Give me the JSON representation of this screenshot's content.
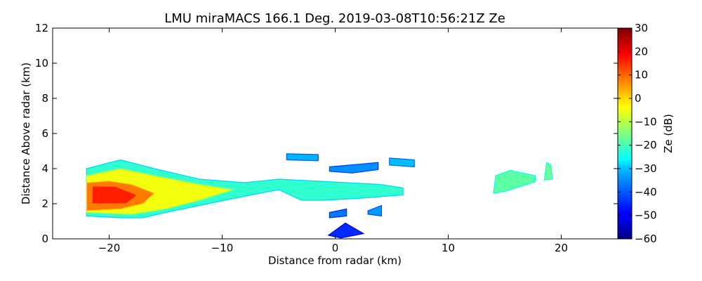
{
  "chart_data": {
    "type": "heatmap",
    "title": "LMU miraMACS 166.1 Deg. 2019-03-08T10:56:21Z  Ze",
    "xlabel": "Distance from radar (km)",
    "ylabel": "Distance Above radar  (km)",
    "xlim": [
      -25,
      25
    ],
    "ylim": [
      0,
      12
    ],
    "xticks": [
      -20,
      -10,
      0,
      10,
      20
    ],
    "xtick_labels": [
      "−20",
      "−10",
      "0",
      "10",
      "20"
    ],
    "yticks": [
      0,
      2,
      4,
      6,
      8,
      10,
      12
    ],
    "ytick_labels": [
      "0",
      "2",
      "4",
      "6",
      "8",
      "10",
      "12"
    ],
    "colorbar": {
      "label": "Ze (dB)",
      "range": [
        -60,
        30
      ],
      "ticks": [
        30,
        20,
        10,
        0,
        -10,
        -20,
        -30,
        -40,
        -50,
        -60
      ],
      "tick_labels": [
        "30",
        "20",
        "10",
        "0",
        "−10",
        "−20",
        "−30",
        "−40",
        "−50",
        "−60"
      ],
      "colormap": "jet"
    },
    "echo_regions": [
      {
        "name": "main-precipitation-band",
        "polygon": [
          [
            -22,
            1.4
          ],
          [
            -22,
            4.0
          ],
          [
            -19,
            4.5
          ],
          [
            -16,
            4.0
          ],
          [
            -12,
            3.4
          ],
          [
            -8,
            3.2
          ],
          [
            -5,
            3.4
          ],
          [
            -2,
            3.3
          ],
          [
            1,
            3.2
          ],
          [
            4,
            3.1
          ],
          [
            6,
            2.9
          ],
          [
            6,
            2.5
          ],
          [
            2,
            2.3
          ],
          [
            -1,
            2.2
          ],
          [
            -3,
            2.2
          ],
          [
            -5,
            2.8
          ],
          [
            -9,
            2.3
          ],
          [
            -12,
            1.9
          ],
          [
            -15,
            1.5
          ],
          [
            -17,
            1.2
          ],
          [
            -19,
            1.2
          ],
          [
            -22,
            1.3
          ]
        ],
        "ze_dB": -22
      },
      {
        "name": "band-inner-core",
        "polygon": [
          [
            -22,
            1.5
          ],
          [
            -22,
            3.6
          ],
          [
            -19,
            4.0
          ],
          [
            -16,
            3.6
          ],
          [
            -12,
            3.1
          ],
          [
            -9,
            2.8
          ],
          [
            -12,
            2.2
          ],
          [
            -15,
            1.7
          ],
          [
            -18,
            1.4
          ]
        ],
        "ze_dB": -5
      },
      {
        "name": "band-max-core",
        "polygon": [
          [
            -22,
            1.6
          ],
          [
            -22,
            3.2
          ],
          [
            -20,
            3.3
          ],
          [
            -18,
            3.1
          ],
          [
            -16,
            2.6
          ],
          [
            -17,
            2.0
          ],
          [
            -19,
            1.7
          ]
        ],
        "ze_dB": 8
      },
      {
        "name": "band-hot-spot",
        "polygon": [
          [
            -21.5,
            2.0
          ],
          [
            -21.5,
            3.0
          ],
          [
            -19.5,
            3.0
          ],
          [
            -17.5,
            2.5
          ],
          [
            -18.5,
            2.0
          ]
        ],
        "ze_dB": 16
      },
      {
        "name": "upper-fragment-a",
        "polygon": [
          [
            -4.3,
            4.85
          ],
          [
            -1.5,
            4.8
          ],
          [
            -1.5,
            4.45
          ],
          [
            -4.3,
            4.5
          ]
        ],
        "ze_dB": -33
      },
      {
        "name": "upper-fragment-b",
        "polygon": [
          [
            -0.5,
            4.1
          ],
          [
            3.8,
            4.35
          ],
          [
            3.8,
            3.95
          ],
          [
            1.5,
            3.75
          ],
          [
            -0.5,
            3.85
          ]
        ],
        "ze_dB": -36
      },
      {
        "name": "upper-fragment-c",
        "polygon": [
          [
            4.8,
            4.6
          ],
          [
            7.0,
            4.5
          ],
          [
            7.0,
            4.1
          ],
          [
            4.8,
            4.2
          ]
        ],
        "ze_dB": -32
      },
      {
        "name": "far-echo-left",
        "polygon": [
          [
            14.0,
            2.6
          ],
          [
            14.2,
            3.6
          ],
          [
            15.5,
            3.9
          ],
          [
            17.7,
            3.6
          ],
          [
            17.7,
            3.25
          ],
          [
            15.0,
            2.7
          ]
        ],
        "ze_dB": -18
      },
      {
        "name": "far-echo-right",
        "polygon": [
          [
            18.5,
            3.35
          ],
          [
            18.7,
            4.35
          ],
          [
            19.1,
            4.2
          ],
          [
            19.2,
            3.4
          ]
        ],
        "ze_dB": -17
      },
      {
        "name": "low-clutter-a",
        "polygon": [
          [
            -0.5,
            1.5
          ],
          [
            1.0,
            1.7
          ],
          [
            1.0,
            1.3
          ],
          [
            -0.5,
            1.2
          ]
        ],
        "ze_dB": -38
      },
      {
        "name": "low-clutter-b",
        "polygon": [
          [
            2.9,
            1.6
          ],
          [
            4.1,
            1.9
          ],
          [
            4.1,
            1.3
          ],
          [
            2.9,
            1.4
          ]
        ],
        "ze_dB": -35
      },
      {
        "name": "low-clutter-c",
        "polygon": [
          [
            -0.6,
            0.2
          ],
          [
            0.9,
            0.9
          ],
          [
            2.5,
            0.3
          ],
          [
            0.5,
            0.05
          ]
        ],
        "ze_dB": -45
      }
    ]
  }
}
